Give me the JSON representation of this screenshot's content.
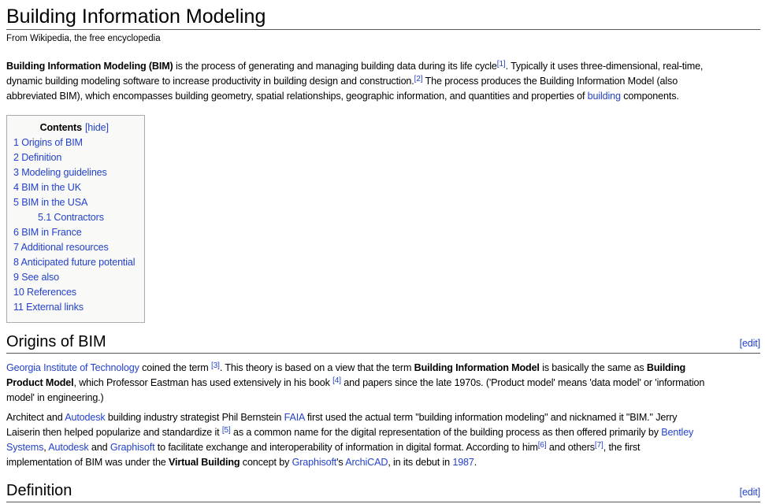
{
  "page": {
    "title": "Building Information Modeling",
    "subtitle": "From Wikipedia, the free encyclopedia"
  },
  "colors": {
    "link": "#2442CB",
    "heading_rule": "#555555",
    "toc_background": "#F9F9F7",
    "toc_border": "#AAAAAA",
    "text": "#000000",
    "page_background": "#FFFFFF"
  },
  "toc": {
    "title": "Contents",
    "hide_label": "[hide]",
    "items": [
      {
        "label": "1 Origins of BIM",
        "indent": 0
      },
      {
        "label": "2 Definition",
        "indent": 0
      },
      {
        "label": "3 Modeling guidelines",
        "indent": 0
      },
      {
        "label": "4 BIM in the UK",
        "indent": 0
      },
      {
        "label": "5 BIM in the USA",
        "indent": 0
      },
      {
        "label": "5.1 Contractors",
        "indent": 1
      },
      {
        "label": "6 BIM in France",
        "indent": 0
      },
      {
        "label": "7 Additional resources",
        "indent": 0
      },
      {
        "label": "8 Anticipated future potential",
        "indent": 0
      },
      {
        "label": "9 See also",
        "indent": 0
      },
      {
        "label": "10 References",
        "indent": 0
      },
      {
        "label": "11 External links",
        "indent": 0
      }
    ]
  },
  "intro": {
    "runs": [
      {
        "t": "Building Information Modeling (BIM)",
        "b": true
      },
      {
        "t": " is the process of generating and managing building data during its life cycle"
      },
      {
        "t": "[1]",
        "link": true,
        "sup": true
      },
      {
        "t": ". Typically it uses three-dimensional, real-time,"
      },
      {
        "br": true
      },
      {
        "t": "dynamic building modeling software to increase productivity in building design and construction."
      },
      {
        "t": "[2]",
        "link": true,
        "sup": true
      },
      {
        "t": " The process produces the Building Information Model (also"
      },
      {
        "br": true
      },
      {
        "t": "abbreviated BIM), which encompasses building geometry, spatial relationships, geographic information, and quantities and properties of "
      },
      {
        "t": "building",
        "link": true
      },
      {
        "t": " components."
      }
    ]
  },
  "sections": [
    {
      "heading": "Origins of BIM",
      "edit_label": "[edit]",
      "paragraphs": [
        [
          {
            "t": "Georgia Institute of Technology",
            "link": true
          },
          {
            "t": " coined the term "
          },
          {
            "t": "[3]",
            "link": true,
            "sup": true
          },
          {
            "t": ". This theory is based on a view that the term "
          },
          {
            "t": "Building Information Model",
            "b": true
          },
          {
            "t": " is basically the same as "
          },
          {
            "t": "Building",
            "b": true
          },
          {
            "br": true
          },
          {
            "t": "Product Model",
            "b": true
          },
          {
            "t": ", which Professor Eastman has used extensively in his book "
          },
          {
            "t": "[4]",
            "link": true,
            "sup": true
          },
          {
            "t": " and papers since the late 1970s. ('Product model' means 'data model' or 'information"
          },
          {
            "br": true
          },
          {
            "t": "model' in engineering.)"
          }
        ],
        [
          {
            "t": "Architect and "
          },
          {
            "t": "Autodesk",
            "link": true
          },
          {
            "t": " building industry strategist Phil Bernstein "
          },
          {
            "t": "FAIA",
            "link": true
          },
          {
            "t": " first used the actual term \"building information modeling\" and nicknamed it \"BIM.\" Jerry"
          },
          {
            "br": true
          },
          {
            "t": "Laiserin then helped popularize and standardize it "
          },
          {
            "t": "[5]",
            "link": true,
            "sup": true
          },
          {
            "t": " as a common name for the digital representation of the building process as then offered primarily by "
          },
          {
            "t": "Bentley",
            "link": true
          },
          {
            "br": true
          },
          {
            "t": "Systems",
            "link": true
          },
          {
            "t": ", "
          },
          {
            "t": "Autodesk",
            "link": true
          },
          {
            "t": " and "
          },
          {
            "t": "Graphisoft",
            "link": true
          },
          {
            "t": " to facilitate exchange and interoperability of information in digital format. According to him"
          },
          {
            "t": "[6]",
            "link": true,
            "sup": true
          },
          {
            "t": " and others"
          },
          {
            "t": "[7]",
            "link": true,
            "sup": true
          },
          {
            "t": ", the first"
          },
          {
            "br": true
          },
          {
            "t": "implementation of BIM was under the "
          },
          {
            "t": "Virtual Building",
            "b": true
          },
          {
            "t": " concept by "
          },
          {
            "t": "Graphisoft",
            "link": true
          },
          {
            "t": "'s "
          },
          {
            "t": "ArchiCAD",
            "link": true
          },
          {
            "t": ", in its debut in "
          },
          {
            "t": "1987",
            "link": true
          },
          {
            "t": "."
          }
        ]
      ]
    },
    {
      "heading": "Definition",
      "edit_label": "[edit]",
      "paragraphs": []
    }
  ]
}
